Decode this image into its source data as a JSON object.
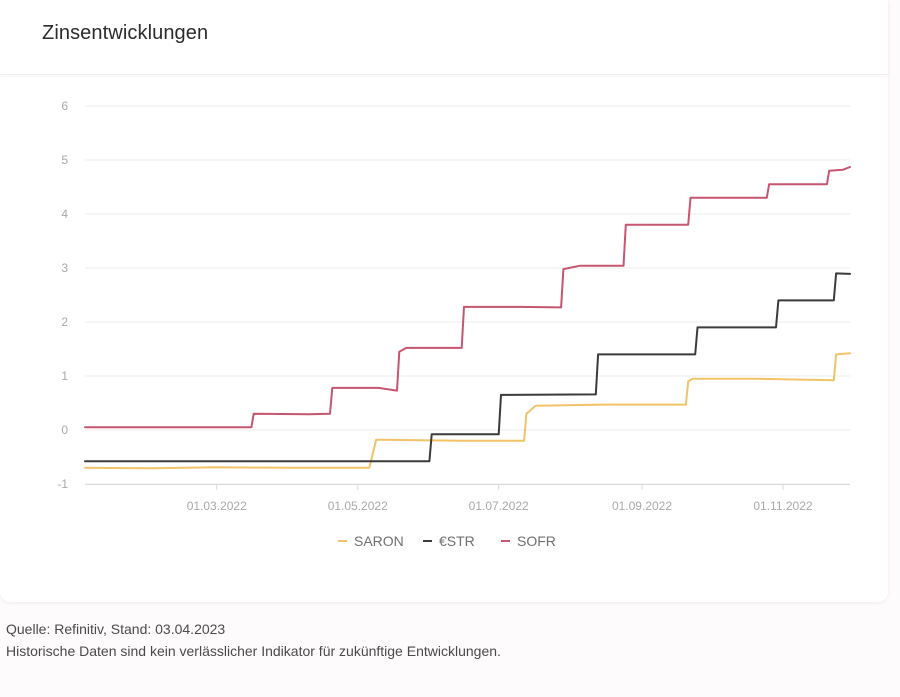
{
  "title": "Zinsentwicklungen",
  "footer": {
    "source": "Quelle: Refinitiv, Stand: 03.04.2023",
    "disclaimer": "Historische Daten sind kein verlässlicher Indikator für zukünftige Entwicklungen."
  },
  "chart_data": {
    "type": "line",
    "ylim": [
      -1,
      6
    ],
    "yticks": [
      -1,
      0,
      1,
      2,
      3,
      4,
      5,
      6
    ],
    "xlim": [
      "2022-01-03",
      "2022-11-30"
    ],
    "xticks": [
      {
        "date": "2022-03-01",
        "label": "01.03.2022"
      },
      {
        "date": "2022-05-01",
        "label": "01.05.2022"
      },
      {
        "date": "2022-07-01",
        "label": "01.07.2022"
      },
      {
        "date": "2022-09-01",
        "label": "01.09.2022"
      },
      {
        "date": "2022-11-01",
        "label": "01.11.2022"
      }
    ],
    "grid": true,
    "legend_position": "bottom",
    "series": [
      {
        "name": "SARON",
        "color": "#f2c266",
        "points": [
          [
            "2022-01-03",
            -0.7
          ],
          [
            "2022-02-01",
            -0.71
          ],
          [
            "2022-03-01",
            -0.69
          ],
          [
            "2022-04-01",
            -0.7
          ],
          [
            "2022-05-06",
            -0.7
          ],
          [
            "2022-05-09",
            -0.18
          ],
          [
            "2022-06-15",
            -0.2
          ],
          [
            "2022-07-12",
            -0.2
          ],
          [
            "2022-07-13",
            0.3
          ],
          [
            "2022-07-17",
            0.45
          ],
          [
            "2022-08-15",
            0.47
          ],
          [
            "2022-09-20",
            0.47
          ],
          [
            "2022-09-21",
            0.9
          ],
          [
            "2022-09-23",
            0.95
          ],
          [
            "2022-10-20",
            0.95
          ],
          [
            "2022-11-23",
            0.92
          ],
          [
            "2022-11-24",
            1.4
          ],
          [
            "2022-11-30",
            1.42
          ]
        ]
      },
      {
        "name": "€STR",
        "color": "#3b3b3b",
        "points": [
          [
            "2022-01-03",
            -0.58
          ],
          [
            "2022-03-01",
            -0.58
          ],
          [
            "2022-05-01",
            -0.58
          ],
          [
            "2022-06-01",
            -0.58
          ],
          [
            "2022-06-02",
            -0.08
          ],
          [
            "2022-07-01",
            -0.08
          ],
          [
            "2022-07-02",
            0.65
          ],
          [
            "2022-08-12",
            0.66
          ],
          [
            "2022-08-13",
            1.4
          ],
          [
            "2022-09-24",
            1.4
          ],
          [
            "2022-09-25",
            1.9
          ],
          [
            "2022-10-29",
            1.9
          ],
          [
            "2022-10-30",
            2.4
          ],
          [
            "2022-11-23",
            2.4
          ],
          [
            "2022-11-24",
            2.9
          ],
          [
            "2022-11-30",
            2.89
          ]
        ]
      },
      {
        "name": "SOFR",
        "color": "#c6566f",
        "points": [
          [
            "2022-01-03",
            0.05
          ],
          [
            "2022-02-10",
            0.05
          ],
          [
            "2022-03-16",
            0.05
          ],
          [
            "2022-03-17",
            0.3
          ],
          [
            "2022-04-10",
            0.29
          ],
          [
            "2022-04-19",
            0.3
          ],
          [
            "2022-04-20",
            0.78
          ],
          [
            "2022-05-10",
            0.78
          ],
          [
            "2022-05-18",
            0.73
          ],
          [
            "2022-05-19",
            1.45
          ],
          [
            "2022-05-22",
            1.52
          ],
          [
            "2022-06-15",
            1.52
          ],
          [
            "2022-06-16",
            2.28
          ],
          [
            "2022-07-10",
            2.28
          ],
          [
            "2022-07-28",
            2.27
          ],
          [
            "2022-07-29",
            2.98
          ],
          [
            "2022-08-05",
            3.04
          ],
          [
            "2022-08-24",
            3.04
          ],
          [
            "2022-08-25",
            3.8
          ],
          [
            "2022-09-10",
            3.8
          ],
          [
            "2022-09-21",
            3.8
          ],
          [
            "2022-09-22",
            4.3
          ],
          [
            "2022-10-10",
            4.3
          ],
          [
            "2022-10-25",
            4.3
          ],
          [
            "2022-10-26",
            4.55
          ],
          [
            "2022-11-10",
            4.55
          ],
          [
            "2022-11-20",
            4.55
          ],
          [
            "2022-11-21",
            4.8
          ],
          [
            "2022-11-27",
            4.82
          ],
          [
            "2022-11-30",
            4.87
          ]
        ]
      }
    ]
  }
}
